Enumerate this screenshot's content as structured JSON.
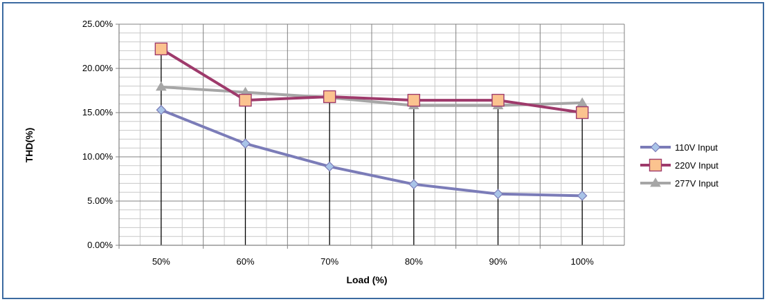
{
  "chart_data": {
    "type": "line",
    "title": "",
    "xlabel": "Load (%)",
    "ylabel": "THD(%)",
    "categories": [
      "50%",
      "60%",
      "70%",
      "80%",
      "90%",
      "100%"
    ],
    "y_ticks": [
      "0.00%",
      "5.00%",
      "10.00%",
      "15.00%",
      "20.00%",
      "25.00%"
    ],
    "ylim": [
      0,
      25
    ],
    "grid": true,
    "legend_position": "right",
    "series": [
      {
        "name": "110V Input",
        "values": [
          15.3,
          11.5,
          8.9,
          6.9,
          5.8,
          5.6
        ],
        "color": "#7b7cb8",
        "marker": "diamond",
        "marker_fill": "#a9c4e8"
      },
      {
        "name": "220V Input",
        "values": [
          22.2,
          16.4,
          16.8,
          16.4,
          16.4,
          15.0
        ],
        "color": "#9e3a6b",
        "marker": "square",
        "marker_fill": "#fbc38f"
      },
      {
        "name": "277V Input",
        "values": [
          17.9,
          17.3,
          16.7,
          15.8,
          15.8,
          16.1
        ],
        "color": "#a6a6a6",
        "marker": "triangle",
        "marker_fill": "#a6a6a6"
      }
    ]
  }
}
